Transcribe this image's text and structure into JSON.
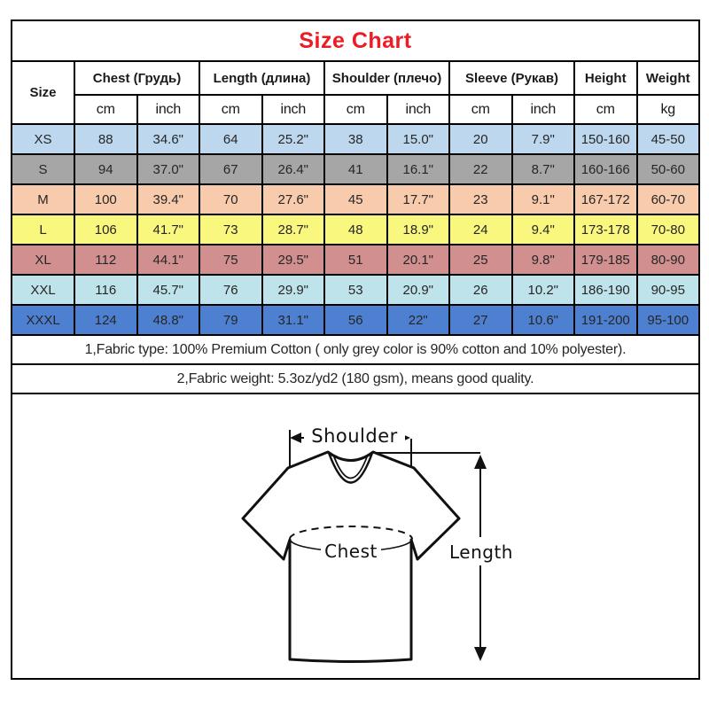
{
  "title": "Size Chart",
  "colors": {
    "title": "#ed1c24",
    "border": "#000000",
    "row_xs": "#bdd7ee",
    "row_s": "#a6a6a6",
    "row_m": "#f8cbad",
    "row_l": "#faf77e",
    "row_xl": "#d28f8f",
    "row_xxl": "#bfe3ea",
    "row_xxxl": "#4e80d2"
  },
  "table": {
    "size_header": "Size",
    "groups": [
      {
        "label": "Chest  (Грудь)",
        "sub": [
          "cm",
          "inch"
        ]
      },
      {
        "label": "Length (длина)",
        "sub": [
          "cm",
          "inch"
        ]
      },
      {
        "label": "Shoulder (плечо)",
        "sub": [
          "cm",
          "inch"
        ]
      },
      {
        "label": "Sleeve (Рукав)",
        "sub": [
          "cm",
          "inch"
        ]
      },
      {
        "label": "Height",
        "sub": [
          "cm"
        ]
      },
      {
        "label": "Weight",
        "sub": [
          "kg"
        ]
      }
    ],
    "rows": [
      {
        "size": "XS",
        "bg": "#bdd7ee",
        "cells": [
          "88",
          "34.6\"",
          "64",
          "25.2\"",
          "38",
          "15.0\"",
          "20",
          "7.9\"",
          "150-160",
          "45-50"
        ]
      },
      {
        "size": "S",
        "bg": "#a6a6a6",
        "cells": [
          "94",
          "37.0\"",
          "67",
          "26.4\"",
          "41",
          "16.1\"",
          "22",
          "8.7\"",
          "160-166",
          "50-60"
        ]
      },
      {
        "size": "M",
        "bg": "#f8cbad",
        "cells": [
          "100",
          "39.4\"",
          "70",
          "27.6\"",
          "45",
          "17.7\"",
          "23",
          "9.1\"",
          "167-172",
          "60-70"
        ]
      },
      {
        "size": "L",
        "bg": "#faf77e",
        "cells": [
          "106",
          "41.7\"",
          "73",
          "28.7\"",
          "48",
          "18.9\"",
          "24",
          "9.4\"",
          "173-178",
          "70-80"
        ]
      },
      {
        "size": "XL",
        "bg": "#d28f8f",
        "cells": [
          "112",
          "44.1\"",
          "75",
          "29.5\"",
          "51",
          "20.1\"",
          "25",
          "9.8\"",
          "179-185",
          "80-90"
        ]
      },
      {
        "size": "XXL",
        "bg": "#bfe3ea",
        "cells": [
          "116",
          "45.7\"",
          "76",
          "29.9\"",
          "53",
          "20.9\"",
          "26",
          "10.2\"",
          "186-190",
          "90-95"
        ]
      },
      {
        "size": "XXXL",
        "bg": "#4e80d2",
        "cells": [
          "124",
          "48.8\"",
          "79",
          "31.1\"",
          "56",
          "22\"",
          "27",
          "10.6\"",
          "191-200",
          "95-100"
        ]
      }
    ]
  },
  "notes": [
    "1,Fabric type: 100% Premium Cotton ( only grey color is 90% cotton and 10% polyester).",
    "2,Fabric weight: 5.3oz/yd2 (180 gsm), means good quality."
  ],
  "diagram": {
    "shoulder_label": "Shoulder",
    "chest_label": "Chest",
    "length_label": "Length"
  }
}
